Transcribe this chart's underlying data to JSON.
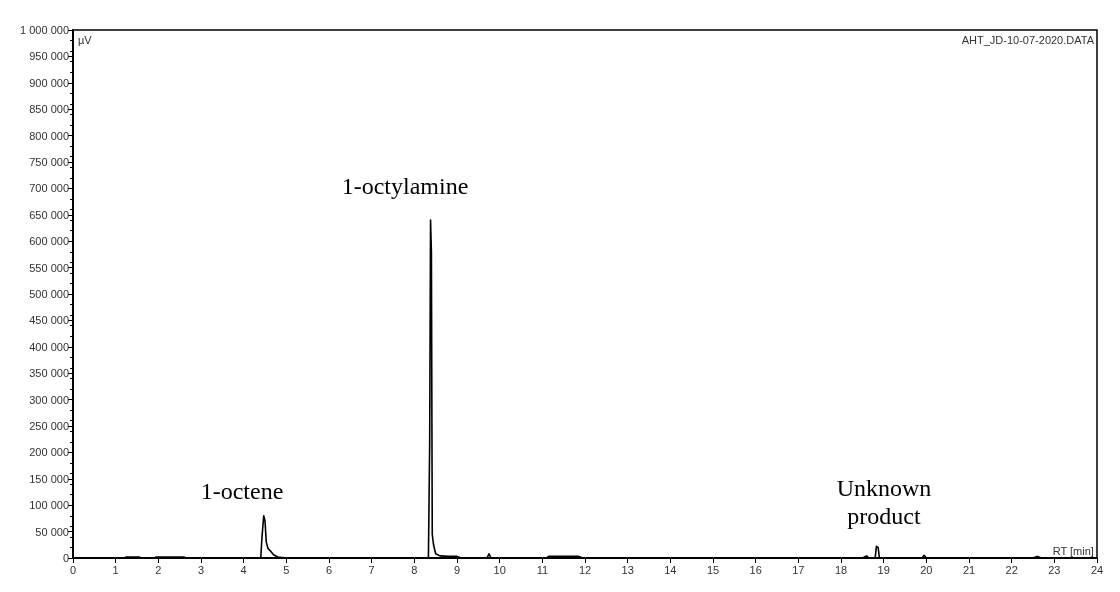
{
  "chart_data": {
    "type": "line",
    "xlabel": "RT [min]",
    "ylabel": "µV",
    "annotations": [
      "1-octene",
      "1-octylamine",
      "Unknown\nproduct",
      "AHT_JD-10-07-2020.DATA"
    ],
    "series": [
      {
        "color": "#000000",
        "x": [
          0,
          1.2,
          1.25,
          1.55,
          1.6,
          1.9,
          1.95,
          2.6,
          2.65,
          4.4,
          4.43,
          4.47,
          4.5,
          4.53,
          4.57,
          4.62,
          4.7,
          4.8,
          5,
          8.33,
          8.36,
          8.38,
          8.4,
          8.42,
          8.45,
          8.5,
          8.6,
          8.8,
          9,
          9.1,
          9.7,
          9.75,
          9.8,
          11.1,
          11.15,
          11.85,
          11.95,
          18.5,
          18.6,
          18.65,
          18.8,
          18.83,
          18.87,
          18.9,
          19.9,
          19.95,
          20,
          22.5,
          22.6,
          22.7,
          24
        ],
        "values": [
          0,
          0,
          2000,
          2000,
          0,
          0,
          2000,
          2000,
          0,
          0,
          40000,
          80000,
          70000,
          30000,
          18000,
          14000,
          6000,
          2000,
          0,
          0,
          220000,
          640000,
          580000,
          45000,
          25000,
          8000,
          4000,
          3000,
          3000,
          0,
          0,
          8000,
          0,
          0,
          3000,
          3000,
          0,
          0,
          4000,
          0,
          0,
          22000,
          20000,
          0,
          0,
          5000,
          0,
          0,
          3000,
          0,
          0
        ]
      }
    ],
    "xlim": [
      0,
      24
    ],
    "xticks": [
      0,
      1,
      2,
      3,
      4,
      5,
      6,
      7,
      8,
      9,
      10,
      11,
      12,
      13,
      14,
      15,
      16,
      17,
      18,
      19,
      20,
      21,
      22,
      23,
      24
    ],
    "ylim": [
      0,
      1000000
    ],
    "yticks": [
      {
        "value": 0,
        "label": "0"
      },
      {
        "value": 50000,
        "label": "50 000"
      },
      {
        "value": 100000,
        "label": "100 000"
      },
      {
        "value": 150000,
        "label": "150 000"
      },
      {
        "value": 200000,
        "label": "200 000"
      },
      {
        "value": 250000,
        "label": "250 000"
      },
      {
        "value": 300000,
        "label": "300 000"
      },
      {
        "value": 350000,
        "label": "350 000"
      },
      {
        "value": 400000,
        "label": "400 000"
      },
      {
        "value": 450000,
        "label": "450 000"
      },
      {
        "value": 500000,
        "label": "500 000"
      },
      {
        "value": 550000,
        "label": "550 000"
      },
      {
        "value": 600000,
        "label": "600 000"
      },
      {
        "value": 650000,
        "label": "650 000"
      },
      {
        "value": 700000,
        "label": "700 000"
      },
      {
        "value": 750000,
        "label": "750 000"
      },
      {
        "value": 800000,
        "label": "800 000"
      },
      {
        "value": 850000,
        "label": "850 000"
      },
      {
        "value": 900000,
        "label": "900 000"
      },
      {
        "value": 950000,
        "label": "950 000"
      },
      {
        "value": 1000000,
        "label": "1 000 000"
      }
    ],
    "grid": false,
    "marker": "none",
    "line_style": "solid"
  }
}
